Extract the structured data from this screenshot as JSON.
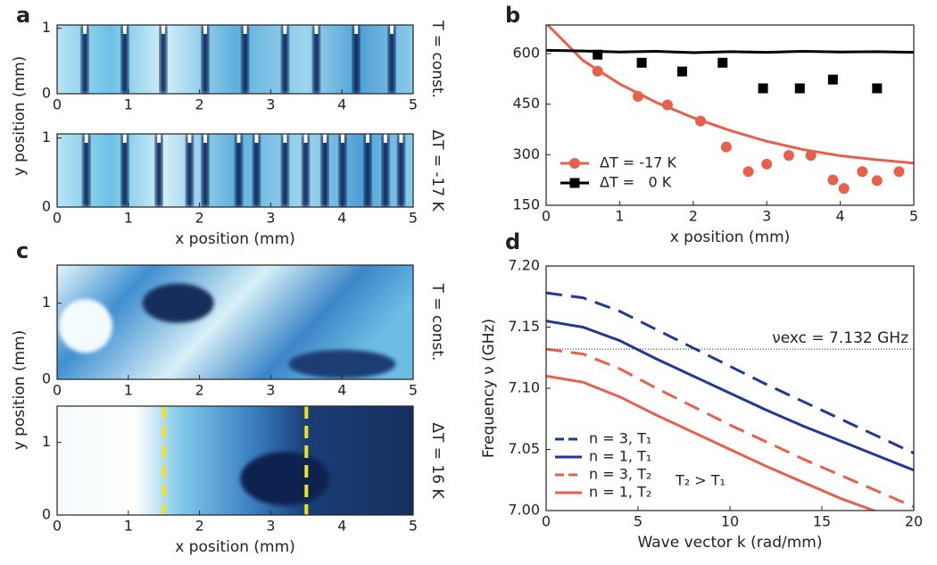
{
  "chart_data": [
    {
      "type": "image",
      "panel": "a",
      "ylabel": "y position (mm)",
      "side_label": "T = const.",
      "xlim": [
        0,
        5
      ],
      "ylim": [
        0,
        1.05
      ],
      "xticks": [
        0,
        1,
        2,
        3,
        4,
        5
      ],
      "yticks": [
        0,
        1
      ],
      "markers": [
        0.39,
        0.95,
        1.49,
        2.08,
        2.64,
        3.2,
        3.64,
        4.2,
        4.7
      ]
    },
    {
      "type": "image",
      "side_label": "ΔT = -17 K",
      "xlabel": "x position (mm)",
      "xlim": [
        0,
        5
      ],
      "ylim": [
        0,
        1.06
      ],
      "xticks": [
        0,
        1,
        2,
        3,
        4,
        5
      ],
      "yticks": [
        0,
        1
      ],
      "markers": [
        0.41,
        0.95,
        1.43,
        1.86,
        2.08,
        2.55,
        2.8,
        3.2,
        3.49,
        3.76,
        4.01,
        4.36,
        4.61,
        4.83
      ]
    },
    {
      "type": "scatter",
      "panel": "b",
      "xlabel": "x position (mm)",
      "xlim": [
        0,
        5
      ],
      "ylim": [
        150,
        685
      ],
      "xticks": [
        0,
        1,
        2,
        3,
        4,
        5
      ],
      "yticks": [
        150,
        300,
        450,
        600
      ],
      "series": [
        {
          "name": "ΔT = -17 K",
          "color": "#e8604c",
          "marker": "circle",
          "x": [
            0.7,
            1.25,
            1.65,
            2.1,
            2.45,
            2.75,
            3.0,
            3.3,
            3.6,
            3.9,
            4.05,
            4.3,
            4.5,
            4.8
          ],
          "values": [
            548,
            473,
            448,
            400,
            323,
            250,
            272,
            298,
            298,
            225,
            200,
            250,
            223,
            250
          ]
        },
        {
          "name": "ΔT =   0 K",
          "color": "#000000",
          "marker": "square",
          "x": [
            0.7,
            1.3,
            1.85,
            2.4,
            2.95,
            3.45,
            3.9,
            4.5
          ],
          "values": [
            597,
            573,
            547,
            573,
            497,
            497,
            523,
            497
          ]
        },
        {
          "color": "#e8604c",
          "marker": "line",
          "x": [
            0,
            0.5,
            1,
            1.5,
            2,
            2.5,
            3,
            3.5,
            4,
            4.5,
            5
          ],
          "values": [
            690,
            580,
            510,
            455,
            410,
            372,
            340,
            315,
            297,
            285,
            275
          ]
        },
        {
          "color": "#000000",
          "marker": "line",
          "x": [
            0,
            0.5,
            1,
            1.5,
            2,
            2.5,
            3,
            3.5,
            4,
            4.5,
            5
          ],
          "values": [
            610,
            608,
            605,
            607,
            603,
            606,
            604,
            607,
            605,
            606,
            604
          ]
        }
      ]
    },
    {
      "type": "image",
      "panel": "c",
      "ylabel": "y position (mm)",
      "side_label": "T = const.",
      "xlim": [
        0,
        5
      ],
      "ylim": [
        0,
        1.5
      ],
      "xticks": [
        0,
        1,
        2,
        3,
        4,
        5
      ],
      "yticks": [
        0,
        1
      ]
    },
    {
      "type": "image",
      "side_label": "ΔT = 16 K",
      "xlabel": "x position (mm)",
      "xlim": [
        0,
        5
      ],
      "ylim": [
        0,
        1.5
      ],
      "xticks": [
        0,
        1,
        2,
        3,
        4,
        5
      ],
      "yticks": [
        0,
        1
      ],
      "vlines": [
        1.5,
        3.5
      ],
      "vline_color": "#f2e21a"
    },
    {
      "type": "line",
      "panel": "d",
      "xlabel": "Wave vector k (rad/mm)",
      "ylabel": "Frequency ν (GHz)",
      "xlim": [
        0,
        20
      ],
      "ylim": [
        7.0,
        7.2
      ],
      "xticks": [
        0,
        5,
        10,
        15,
        20
      ],
      "yticks": [
        {
          "value": 7.0,
          "label": "7.00"
        },
        {
          "value": 7.05,
          "label": "7.05"
        },
        {
          "value": 7.1,
          "label": "7.10"
        },
        {
          "value": 7.15,
          "label": "7.15"
        },
        {
          "value": 7.2,
          "label": "7.20"
        }
      ],
      "hline": {
        "value": 7.132,
        "label": "νexc = 7.132 GHz"
      },
      "annotation": "T₂ > T₁",
      "x": [
        0,
        2,
        4,
        6,
        8,
        10,
        12,
        14,
        16,
        18,
        20
      ],
      "series": [
        {
          "name": "n = 3, T₁",
          "color": "#1f3a93",
          "dashed": true,
          "values": [
            7.178,
            7.174,
            7.163,
            7.148,
            7.133,
            7.118,
            7.103,
            7.089,
            7.075,
            7.061,
            7.047
          ]
        },
        {
          "name": "n = 1, T₁",
          "color": "#1f3a93",
          "dashed": false,
          "values": [
            7.155,
            7.15,
            7.139,
            7.124,
            7.11,
            7.096,
            7.082,
            7.069,
            7.057,
            7.045,
            7.033
          ]
        },
        {
          "name": "n = 3, T₂",
          "color": "#e8604c",
          "dashed": true,
          "values": [
            7.132,
            7.128,
            7.116,
            7.1,
            7.085,
            7.07,
            7.056,
            7.042,
            7.029,
            7.016,
            7.003
          ]
        },
        {
          "name": "n = 1, T₂",
          "color": "#e8604c",
          "dashed": false,
          "values": [
            7.11,
            7.105,
            7.093,
            7.078,
            7.064,
            7.05,
            7.036,
            7.023,
            7.01,
            6.999,
            6.988
          ]
        }
      ]
    }
  ]
}
